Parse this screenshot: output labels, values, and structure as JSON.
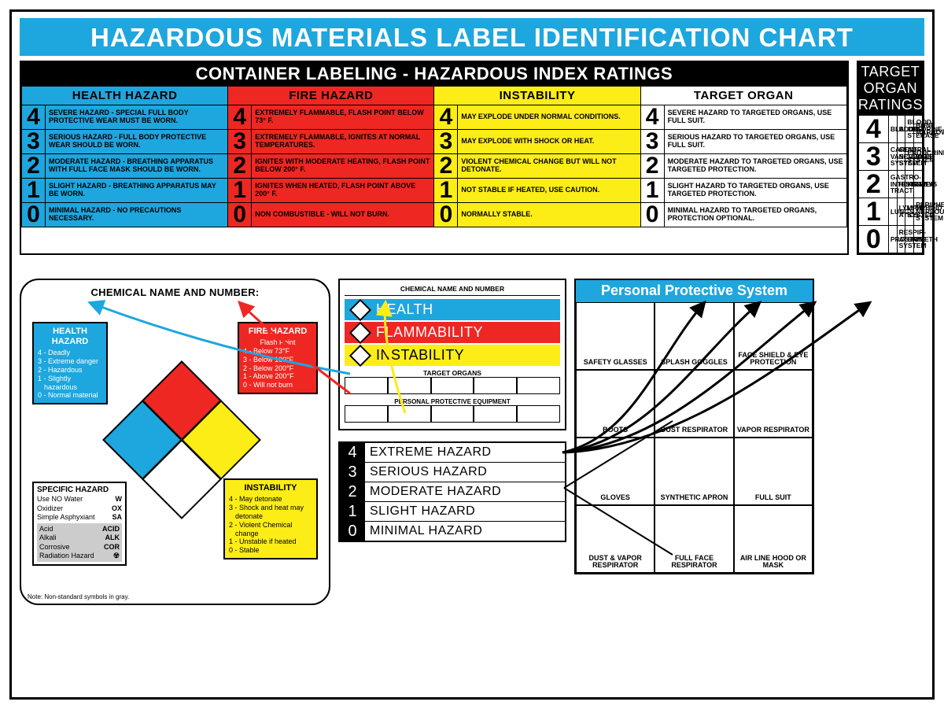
{
  "colors": {
    "title_bg": "#1ea6de",
    "blue": "#1ea6de",
    "red": "#ee2722",
    "yellow": "#fced17",
    "black": "#000000",
    "white": "#ffffff",
    "gray": "#cccccc"
  },
  "title": "HAZARDOUS MATERIALS LABEL IDENTIFICATION CHART",
  "container_labeling": {
    "heading": "CONTAINER LABELING - HAZARDOUS INDEX RATINGS",
    "columns": [
      {
        "name": "HEALTH HAZARD",
        "color": "blue"
      },
      {
        "name": "FIRE HAZARD",
        "color": "red"
      },
      {
        "name": "INSTABILITY",
        "color": "yellow"
      },
      {
        "name": "TARGET ORGAN",
        "color": "white"
      }
    ],
    "ratings": [
      4,
      3,
      2,
      1,
      0
    ],
    "cells": {
      "health": [
        "Severe hazard - special full body protective wear must be worn.",
        "Serious hazard - full body protective wear should be worn.",
        "Moderate hazard - breathing apparatus with full face mask should be worn.",
        "Slight hazard - breathing apparatus may be worn.",
        "Minimal hazard - no precautions necessary."
      ],
      "fire": [
        "Extremely flammable, flash point below 73° F.",
        "Extremely flammable, ignites at normal temperatures.",
        "Ignites with moderate heating, flash point below 200° F.",
        "Ignites when heated, flash point above 200° F.",
        "Non combustible - will not burn."
      ],
      "instability": [
        "May explode under normal conditions.",
        "May explode with shock or heat.",
        "Violent chemical change but will not detonate.",
        "Not stable if heated, use caution.",
        "Normally stable."
      ],
      "target": [
        "Severe hazard to targeted organs, use full suit.",
        "Serious hazard to targeted organs, use full suit.",
        "Moderate hazard to targeted organs, use targeted protection.",
        "Slight hazard to targeted organs, use targeted protection.",
        "Minimal hazard to targeted organs, protection optional."
      ]
    }
  },
  "target_organ_ratings": {
    "heading": "TARGET ORGAN RATINGS",
    "rows": [
      {
        "n": 4,
        "organs": [
          "Bladder",
          "Blood",
          "Blood Chlorine-sterase",
          "Bone Marrow"
        ]
      },
      {
        "n": 3,
        "organs": [
          "Cardio-vascular System",
          "Central Nervous System",
          "Endocrine System",
          "Eyes"
        ]
      },
      {
        "n": 2,
        "organs": [
          "Gastro-intestinal Tract",
          "Heart",
          "Kidneys",
          "Liver"
        ]
      },
      {
        "n": 1,
        "organs": [
          "Lungs",
          "Lymph-atics",
          "Lymphoid System",
          "Peripheral Nervous System"
        ]
      },
      {
        "n": 0,
        "organs": [
          "Prostate",
          "Respir-atory System",
          "Skin",
          "Teeth"
        ]
      }
    ]
  },
  "nfpa_panel": {
    "title": "CHEMICAL NAME AND NUMBER:",
    "health": {
      "label": "HEALTH HAZARD",
      "items": [
        "4 - Deadly",
        "3 - Extreme danger",
        "2 - Hazardous",
        "1 - Slightly hazardous",
        "0 - Normal material"
      ]
    },
    "fire": {
      "label": "FIRE HAZARD",
      "sub": "Flash Point",
      "items": [
        "4 - Below 73°F",
        "3 - Below 100°F",
        "2 - Below 200°F",
        "1 - Above 200°F",
        "0 - Will not burn"
      ]
    },
    "instab": {
      "label": "INSTABILITY",
      "items": [
        "4 - May detonate",
        "3 - Shock and heat may detonate",
        "2 - Violent Chemical change",
        "1 - Unstable if heated",
        "0 - Stable"
      ]
    },
    "specific": {
      "title": "SPECIFIC HAZARD",
      "rows": [
        [
          "Use NO Water",
          "W"
        ],
        [
          "Oxidizer",
          "OX"
        ],
        [
          "Simple Asphyxiant",
          "SA"
        ]
      ],
      "gray_rows": [
        [
          "Acid",
          "ACID"
        ],
        [
          "Alkali",
          "ALK"
        ],
        [
          "Corrosive",
          "COR"
        ],
        [
          "Radiation Hazard",
          "☢"
        ]
      ]
    },
    "note": "Note: Non-standard symbols in gray."
  },
  "hmis_label": {
    "top": "CHEMICAL NAME AND NUMBER",
    "bars": [
      {
        "label": "HEALTH",
        "cls": "hmis-h"
      },
      {
        "label": "FLAMMABILITY",
        "cls": "hmis-f"
      },
      {
        "label": "INSTABILITY",
        "cls": "hmis-i"
      }
    ],
    "target_label": "TARGET ORGANS",
    "ppe_label": "PERSONAL PROTECTIVE EQUIPMENT"
  },
  "hazard_scale": [
    {
      "n": 4,
      "label": "EXTREME HAZARD"
    },
    {
      "n": 3,
      "label": "SERIOUS HAZARD"
    },
    {
      "n": 2,
      "label": "MODERATE HAZARD"
    },
    {
      "n": 1,
      "label": "SLIGHT HAZARD"
    },
    {
      "n": 0,
      "label": "MINIMAL HAZARD"
    }
  ],
  "pps": {
    "heading": "Personal Protective System",
    "cells": [
      "Safety Glasses",
      "Splash Goggles",
      "Face Shield & Eye Protection",
      "Boots",
      "Dust Respirator",
      "Vapor Respirator",
      "Gloves",
      "Synthetic Apron",
      "Full Suit",
      "Dust & Vapor Respirator",
      "Full Face Respirator",
      "Air Line Hood or Mask"
    ]
  }
}
